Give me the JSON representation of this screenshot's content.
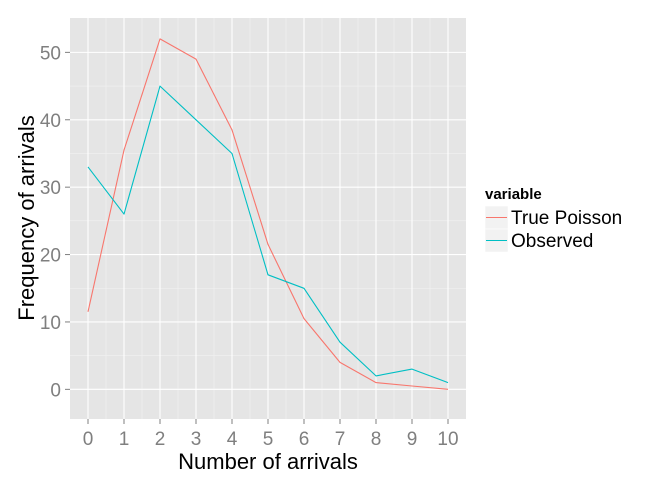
{
  "chart_data": {
    "type": "line",
    "xlabel": "Number of arrivals",
    "ylabel": "Frequency of arrivals",
    "x": [
      0,
      1,
      2,
      3,
      4,
      5,
      6,
      7,
      8,
      9,
      10
    ],
    "xlim": [
      -0.5,
      10.5
    ],
    "ylim": [
      -4.4,
      55.1
    ],
    "yticks": [
      0,
      10,
      20,
      30,
      40,
      50
    ],
    "grid": true,
    "legend": {
      "title": "variable",
      "position": "right"
    },
    "series": [
      {
        "name": "True Poisson",
        "color": "#F8766D",
        "values": [
          11.5,
          35.5,
          52,
          49,
          38.5,
          21.5,
          10.5,
          4,
          1,
          0.5,
          0
        ]
      },
      {
        "name": "Observed",
        "color": "#00BFC4",
        "values": [
          33,
          26,
          45,
          40,
          35,
          17,
          15,
          7,
          2,
          3,
          1
        ]
      }
    ]
  }
}
